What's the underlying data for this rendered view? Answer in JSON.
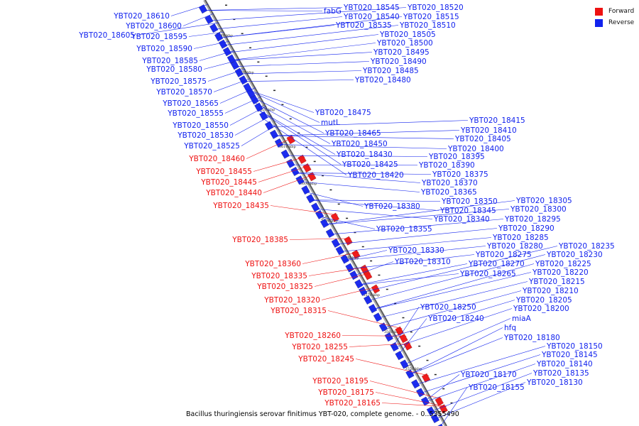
{
  "colors": {
    "forward": "#ee1111",
    "reverse": "#1122ee",
    "backbone": "#888888",
    "label_line_fwd": "#ee1111",
    "label_line_rev": "#1122ee"
  },
  "legend": [
    {
      "label": "Forward",
      "color": "#ee1111"
    },
    {
      "label": "Reverse",
      "color": "#1122ee"
    }
  ],
  "caption": "Bacillus thuringiensis serovar finitimus YBT-020, complete genome. - 0..5355490",
  "ticks": [
    "3640 kbp",
    "3630 kbp",
    "3620 kbp",
    "3610 kbp",
    "3600 kbp",
    "3590 kbp",
    "3580 kbp",
    "3570 kbp",
    "3560 kbp",
    "3550 kbp"
  ],
  "left_reverse_labels": [
    "YBT020_18610",
    "YBT020_18600",
    "YBT020_18605",
    "YBT020_18595",
    "YBT020_18590",
    "YBT020_18585",
    "YBT020_18580",
    "YBT020_18575",
    "YBT020_18570",
    "YBT020_18565",
    "YBT020_18555",
    "YBT020_18550",
    "YBT020_18530",
    "YBT020_18525"
  ],
  "left_forward_labels": [
    "YBT020_18460",
    "YBT020_18455",
    "YBT020_18445",
    "YBT020_18440",
    "YBT020_18435",
    "YBT020_18385",
    "YBT020_18360",
    "YBT020_18335",
    "YBT020_18325",
    "YBT020_18320",
    "YBT020_18315",
    "YBT020_18260",
    "YBT020_18255",
    "YBT020_18245",
    "YBT020_18195",
    "YBT020_18175",
    "YBT020_18165"
  ],
  "right_labels": [
    "fabG",
    "YBT020_18545",
    "YBT020_18520",
    "YBT020_18540",
    "YBT020_18515",
    "YBT020_18535",
    "YBT020_18510",
    "YBT020_18505",
    "YBT020_18500",
    "YBT020_18495",
    "YBT020_18490",
    "YBT020_18485",
    "YBT020_18480",
    "YBT020_18475",
    "mutL",
    "YBT020_18465",
    "YBT020_18450",
    "YBT020_18430",
    "YBT020_18425",
    "YBT020_18420",
    "YBT020_18415",
    "YBT020_18410",
    "YBT020_18405",
    "YBT020_18400",
    "YBT020_18395",
    "YBT020_18390",
    "YBT020_18375",
    "YBT020_18370",
    "YBT020_18365",
    "YBT020_18380",
    "YBT020_18350",
    "YBT020_18345",
    "YBT020_18340",
    "YBT020_18355",
    "YBT020_18305",
    "YBT020_18300",
    "YBT020_18295",
    "YBT020_18290",
    "YBT020_18285",
    "YBT020_18280",
    "YBT020_18330",
    "YBT020_18275",
    "YBT020_18310",
    "YBT020_18270",
    "YBT020_18265",
    "YBT020_18235",
    "YBT020_18230",
    "YBT020_18225",
    "YBT020_18220",
    "YBT020_18215",
    "YBT020_18210",
    "YBT020_18205",
    "YBT020_18250",
    "YBT020_18200",
    "YBT020_18240",
    "miaA",
    "hfq",
    "YBT020_18180",
    "YBT020_18150",
    "YBT020_18145",
    "YBT020_18140",
    "YBT020_18170",
    "YBT020_18135",
    "YBT020_18130",
    "YBT020_18155"
  ]
}
